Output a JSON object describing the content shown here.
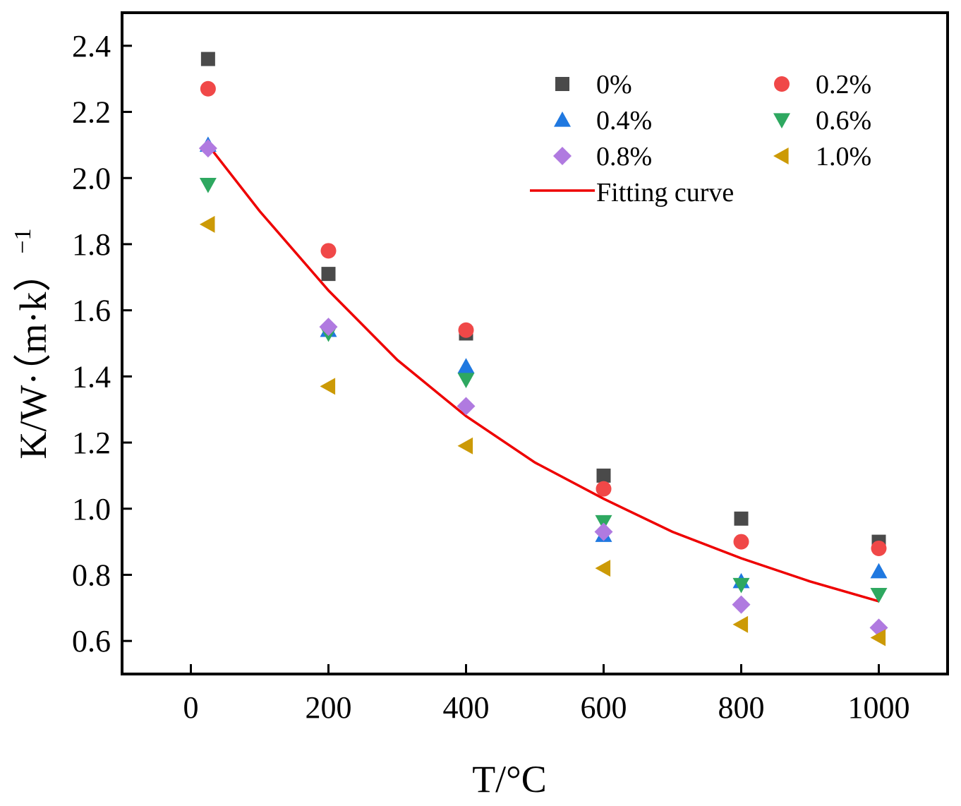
{
  "chart_data": {
    "type": "scatter",
    "title": "",
    "xlabel": "T/°C",
    "ylabel": "K/W·（m·k）",
    "ylabel_superscript": "−1",
    "xlim": [
      -100,
      1100
    ],
    "ylim": [
      0.5,
      2.5
    ],
    "x_ticks": [
      0,
      200,
      400,
      600,
      800,
      1000
    ],
    "x_tick_labels": [
      "0",
      "200",
      "400",
      "600",
      "800",
      "1000"
    ],
    "y_ticks": [
      0.6,
      0.8,
      1.0,
      1.2,
      1.4,
      1.6,
      1.8,
      2.0,
      2.2,
      2.4
    ],
    "y_tick_labels": [
      "0.6",
      "0.8",
      "1.0",
      "1.2",
      "1.4",
      "1.6",
      "1.8",
      "2.0",
      "2.2",
      "2.4"
    ],
    "grid": false,
    "legend_position": "top-right",
    "x": [
      25,
      200,
      400,
      600,
      800,
      1000
    ],
    "series": [
      {
        "name": "0%",
        "marker": "square",
        "color": "#4a4a4a",
        "values": [
          2.36,
          1.71,
          1.53,
          1.1,
          0.97,
          0.9
        ]
      },
      {
        "name": "0.2%",
        "marker": "circle",
        "color": "#f04848",
        "values": [
          2.27,
          1.78,
          1.54,
          1.06,
          0.9,
          0.88
        ]
      },
      {
        "name": "0.4%",
        "marker": "triangle-up",
        "color": "#1f78e0",
        "values": [
          2.1,
          1.54,
          1.43,
          0.92,
          0.78,
          0.81
        ]
      },
      {
        "name": "0.6%",
        "marker": "triangle-down",
        "color": "#2ea860",
        "values": [
          1.98,
          1.53,
          1.39,
          0.96,
          0.77,
          0.74
        ]
      },
      {
        "name": "0.8%",
        "marker": "diamond",
        "color": "#b07ae0",
        "values": [
          2.09,
          1.55,
          1.31,
          0.93,
          0.71,
          0.64
        ]
      },
      {
        "name": "1.0%",
        "marker": "triangle-left",
        "color": "#cc9a06",
        "values": [
          1.86,
          1.37,
          1.19,
          0.82,
          0.65,
          0.61
        ]
      }
    ],
    "fit_curve": {
      "name": "Fitting curve",
      "color": "#ee0000",
      "x": [
        25,
        100,
        200,
        300,
        400,
        500,
        600,
        700,
        800,
        900,
        1000
      ],
      "values": [
        2.1,
        1.9,
        1.66,
        1.45,
        1.28,
        1.14,
        1.03,
        0.93,
        0.85,
        0.78,
        0.72
      ]
    }
  }
}
